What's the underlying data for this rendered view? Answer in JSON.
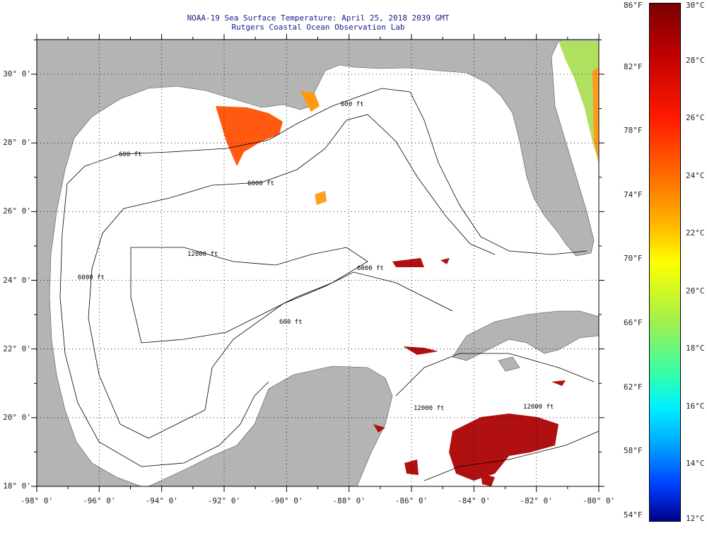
{
  "header": {
    "title": "NOAA-19 Sea Surface Temperature:  April 25, 2018 2039 GMT",
    "subtitle": "Rutgers Coastal Ocean Observation Lab"
  },
  "axes": {
    "lon_labels": [
      "-98° 0'",
      "-96° 0'",
      "-94° 0'",
      "-92° 0'",
      "-90° 0'",
      "-88° 0'",
      "-86° 0'",
      "-84° 0'",
      "-82° 0'",
      "-80° 0'"
    ],
    "lat_labels": [
      "18° 0'",
      "20° 0'",
      "22° 0'",
      "24° 0'",
      "26° 0'",
      "28° 0'",
      "30° 0'"
    ]
  },
  "colorbar": {
    "fahrenheit": [
      "86°F",
      "82°F",
      "78°F",
      "74°F",
      "70°F",
      "66°F",
      "62°F",
      "58°F",
      "54°F"
    ],
    "celsius": [
      "30°C",
      "28°C",
      "26°C",
      "24°C",
      "22°C",
      "20°C",
      "18°C",
      "16°C",
      "14°C",
      "12°C"
    ],
    "range_c": [
      12,
      30
    ]
  },
  "contours": {
    "c600a": "600 ft",
    "c600b": "600 ft",
    "c600c": "600 ft",
    "c6000a": "6000 ft",
    "c6000b": "6000 ft",
    "c6000c": "6000 ft",
    "c12000a": "12000 ft",
    "c12000b": "12000 ft",
    "c12000c": "12000 ft"
  },
  "colors": {
    "land": "#b4b4b4",
    "ocean": "#ffffff",
    "title": "#1a1a8c"
  }
}
